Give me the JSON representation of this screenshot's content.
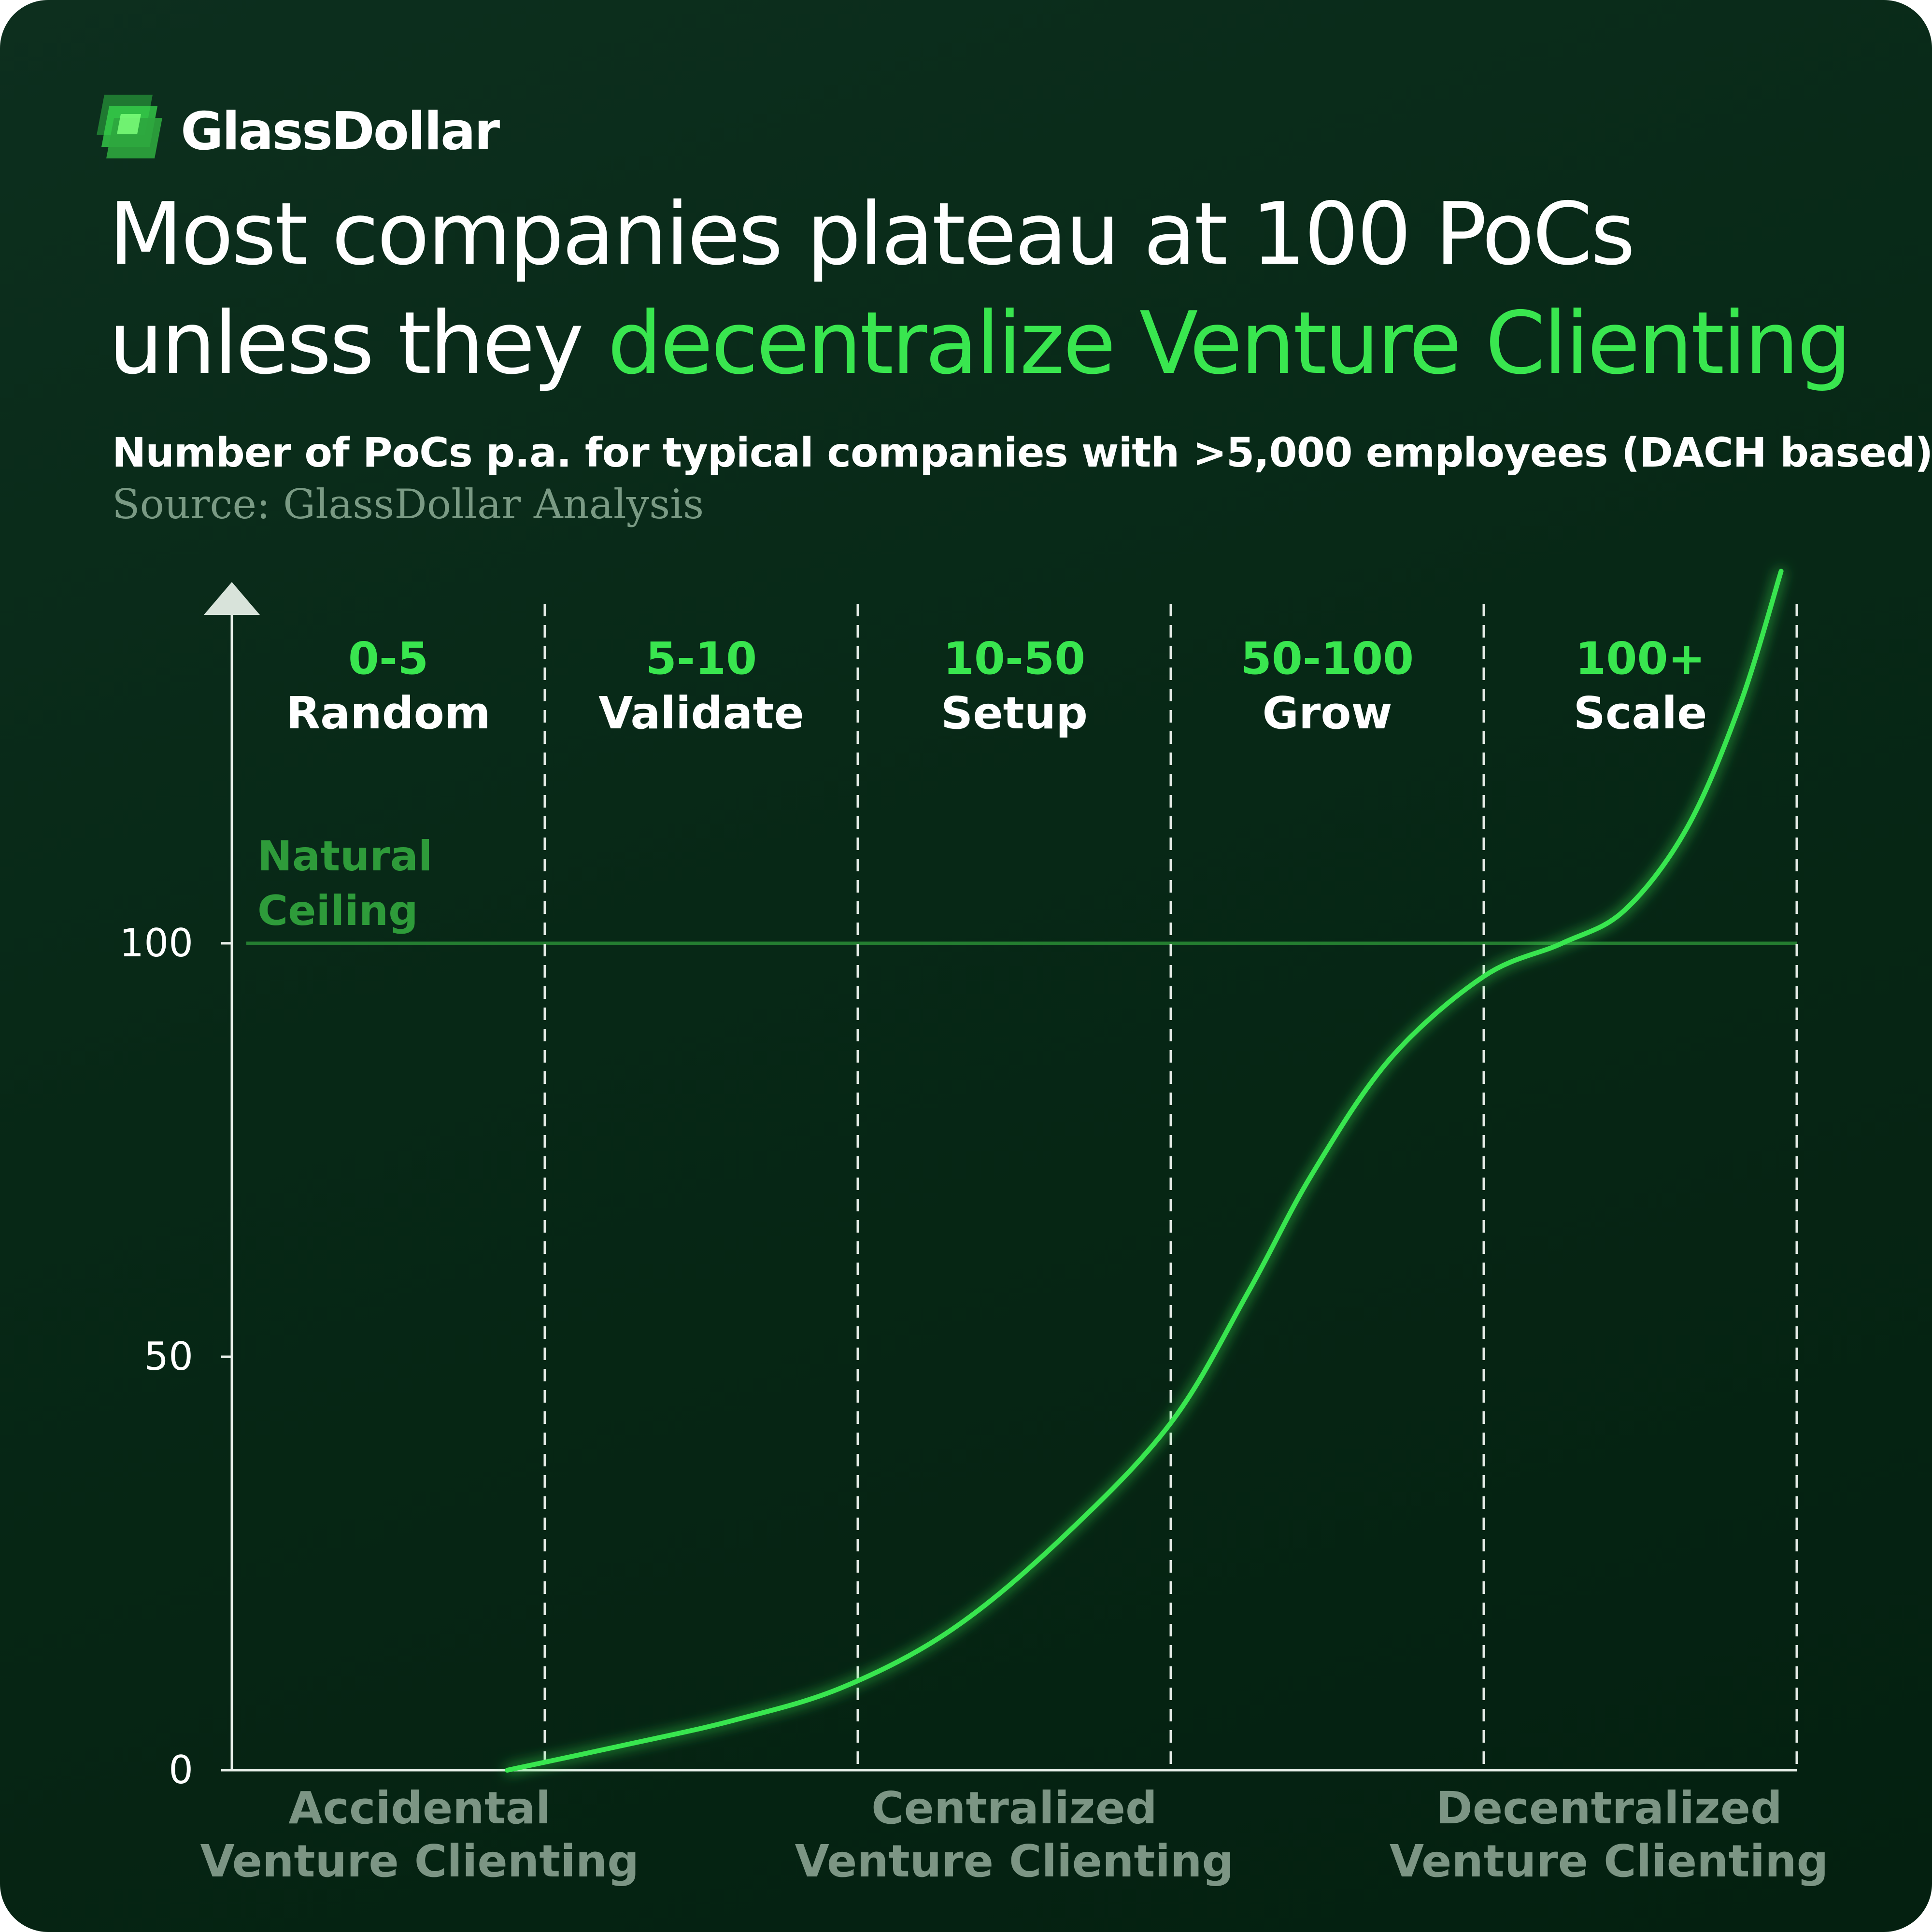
{
  "brand": {
    "name": "GlassDollar",
    "logo_icon": "stacked-glass-squares-icon"
  },
  "header": {
    "title_part1": "Most companies plateau at 100 PoCs unless they ",
    "title_highlight": "decentralize Venture Clienting",
    "subtitle": "Number of PoCs p.a. for typical companies with >5,000 employees (DACH based)",
    "source": "Source: GlassDollar Analysis"
  },
  "colors": {
    "background": "#062716",
    "accent_green": "#39e64f",
    "ceiling_green": "#2e9b3a",
    "muted_label": "#7c9584",
    "axis": "#e8efe9"
  },
  "chart_data": {
    "type": "line",
    "title": "Number of PoCs p.a. for typical companies with >5,000 employees (DACH based)",
    "ylim": [
      0,
      145
    ],
    "y_ticks": [
      0,
      50,
      100
    ],
    "y_tick_labels": [
      "0",
      "50",
      "100"
    ],
    "x_range": [
      0,
      5
    ],
    "grid": false,
    "stages": [
      {
        "range": "0-5",
        "name": "Random"
      },
      {
        "range": "5-10",
        "name": "Validate"
      },
      {
        "range": "10-50",
        "name": "Setup"
      },
      {
        "range": "50-100",
        "name": "Grow"
      },
      {
        "range": "100+",
        "name": "Scale"
      }
    ],
    "x_group_labels": [
      {
        "text": "Accidental Venture Clienting",
        "line1": "Accidental",
        "line2": "Venture Clienting",
        "x": 0.6
      },
      {
        "text": "Centralized Venture Clienting",
        "line1": "Centralized",
        "line2": "Venture Clienting",
        "x": 2.5
      },
      {
        "text": "Decentralized Venture Clienting",
        "line1": "Decentralized",
        "line2": "Venture Clienting",
        "x": 4.4
      }
    ],
    "reference_line": {
      "value": 100,
      "label": "Natural Ceiling",
      "line1": "Natural",
      "line2": "Ceiling"
    },
    "series": [
      {
        "x": [
          0.88,
          1.25,
          1.6,
          1.95,
          2.3,
          2.65,
          3.0,
          3.25,
          3.45,
          3.7,
          4.0,
          4.25,
          4.45,
          4.65,
          4.82,
          4.95
        ],
        "y": [
          0,
          3,
          6,
          10,
          17,
          28,
          42,
          58,
          72,
          86,
          96,
          100,
          104,
          114,
          129,
          145
        ]
      }
    ]
  }
}
